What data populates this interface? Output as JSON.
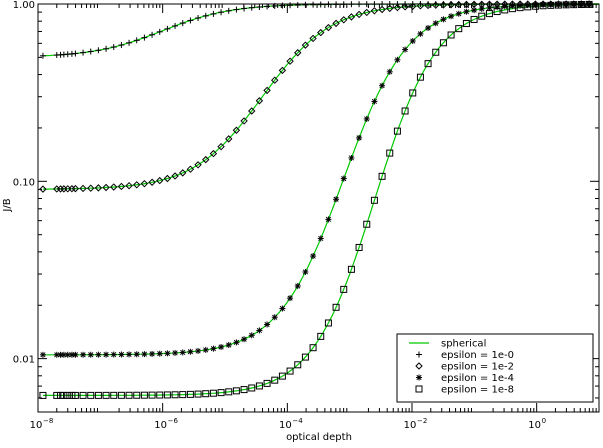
{
  "chart_data": {
    "type": "scatter",
    "xlabel": "optical depth",
    "ylabel": "J/B",
    "xscale": "log",
    "yscale": "log",
    "xlim": [
      1e-08,
      10
    ],
    "ylim": [
      0.005,
      1.0
    ],
    "x_ticks": [
      {
        "value": 1e-08,
        "base": "10",
        "exp": "−8"
      },
      {
        "value": 1e-06,
        "base": "10",
        "exp": "−6"
      },
      {
        "value": 0.0001,
        "base": "10",
        "exp": "−4"
      },
      {
        "value": 0.01,
        "base": "10",
        "exp": "−2"
      },
      {
        "value": 1,
        "base": "10",
        "exp": "0"
      }
    ],
    "y_ticks": [
      {
        "value": 0.01,
        "label": "0.01"
      },
      {
        "value": 0.1,
        "label": "0.10"
      },
      {
        "value": 1.0,
        "label": "1.00"
      }
    ],
    "grid": false,
    "legend_position": "bottom-right",
    "curve_color": "#00c800",
    "marker_color": "#000000",
    "legend": {
      "line_label": "spherical",
      "entries": [
        {
          "marker": "plus",
          "label": "epsilon = 1e-0"
        },
        {
          "marker": "diamond",
          "label": "epsilon = 1e-2"
        },
        {
          "marker": "asterisk",
          "label": "epsilon = 1e-4"
        },
        {
          "marker": "square",
          "label": "epsilon = 1e-8"
        }
      ]
    },
    "series": [
      {
        "name": "epsilon = 1e-0",
        "marker": "plus",
        "low": 0.5,
        "high": 1.0,
        "center_log10_x": -6.0,
        "width": 0.55
      },
      {
        "name": "epsilon = 1e-2",
        "marker": "diamond",
        "low": 0.09,
        "high": 1.0,
        "center_log10_x": -4.4,
        "width": 0.55
      },
      {
        "name": "epsilon = 1e-4",
        "marker": "asterisk",
        "low": 0.0105,
        "high": 1.0,
        "center_log10_x": -3.1,
        "width": 0.52
      },
      {
        "name": "epsilon = 1e-8",
        "marker": "square",
        "low": 0.0062,
        "high": 1.0,
        "center_log10_x": -2.6,
        "width": 0.5
      }
    ]
  }
}
